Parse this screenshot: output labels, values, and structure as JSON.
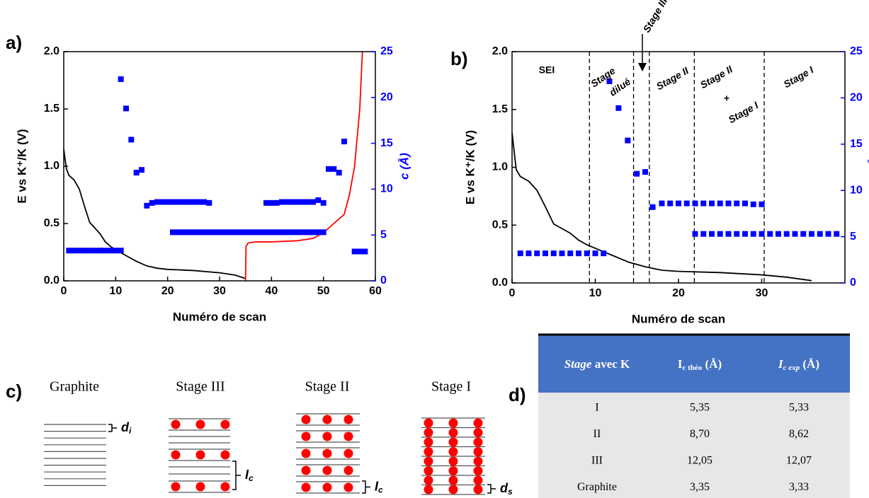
{
  "chart_data": [
    {
      "type": "line",
      "panel_label": "a)",
      "xlabel": "Numéro de scan",
      "ylabel": "E vs K⁺/K (V)",
      "y2label": "c (Å)",
      "xlim": [
        0,
        60
      ],
      "xticks": [
        0,
        10,
        20,
        30,
        40,
        50,
        60
      ],
      "ylim": [
        0,
        2
      ],
      "yticks": [
        {
          "value": 0,
          "label": "0.0"
        },
        0.5,
        {
          "value": 1,
          "label": "1.0"
        },
        1.5,
        {
          "value": 2,
          "label": "2.0"
        }
      ],
      "y2lim": [
        0,
        25
      ],
      "y2ticks": [
        0,
        5,
        10,
        15,
        20,
        25
      ],
      "y2color": "#0000ff",
      "series": [
        {
          "type": "line",
          "color": "#000000",
          "x": [
            0,
            0.5,
            1,
            2,
            3,
            4,
            5,
            6,
            7,
            8,
            9,
            10,
            12,
            14,
            16,
            18,
            20,
            25,
            30,
            33,
            35
          ],
          "values": [
            1.15,
            0.98,
            0.92,
            0.88,
            0.8,
            0.65,
            0.51,
            0.46,
            0.41,
            0.34,
            0.3,
            0.27,
            0.22,
            0.17,
            0.13,
            0.11,
            0.1,
            0.09,
            0.07,
            0.05,
            0.02
          ]
        },
        {
          "type": "line",
          "color": "#ff0000",
          "x": [
            35,
            35.1,
            35.5,
            37,
            40,
            45,
            48,
            50,
            52,
            54,
            55,
            56,
            57,
            57.5
          ],
          "values": [
            0,
            0.3,
            0.33,
            0.34,
            0.34,
            0.35,
            0.37,
            0.42,
            0.5,
            0.58,
            0.75,
            1.0,
            1.5,
            2.0
          ]
        },
        {
          "type": "scatter",
          "color": "#0000ff",
          "axis": "y2",
          "x": [
            1,
            2,
            3,
            4,
            5,
            6,
            7,
            8,
            9,
            10,
            11,
            11,
            12,
            13,
            14,
            15,
            16,
            17,
            18,
            19,
            20,
            21,
            22,
            23,
            24,
            25,
            26,
            27,
            28,
            21,
            22,
            23,
            24,
            25,
            26,
            27,
            28,
            29,
            30,
            31,
            32,
            33,
            34,
            35,
            36,
            37,
            38,
            39,
            40,
            41,
            42,
            43,
            44,
            45,
            46,
            47,
            48,
            49,
            50,
            39,
            40,
            41,
            42,
            43,
            44,
            45,
            46,
            47,
            48,
            49,
            50,
            51,
            52,
            53,
            54,
            56,
            57,
            58
          ],
          "values": [
            3.3,
            3.3,
            3.3,
            3.3,
            3.3,
            3.3,
            3.3,
            3.3,
            3.3,
            3.3,
            3.3,
            22,
            18.8,
            15.4,
            11.8,
            12.1,
            8.2,
            8.5,
            8.6,
            8.6,
            8.6,
            8.6,
            8.6,
            8.6,
            8.6,
            8.6,
            8.6,
            8.6,
            8.5,
            5.3,
            5.3,
            5.3,
            5.3,
            5.3,
            5.3,
            5.3,
            5.3,
            5.3,
            5.3,
            5.3,
            5.3,
            5.3,
            5.3,
            5.3,
            5.3,
            5.3,
            5.3,
            5.3,
            5.3,
            5.3,
            5.3,
            5.3,
            5.3,
            5.3,
            5.3,
            5.3,
            5.3,
            5.3,
            5.3,
            8.5,
            8.5,
            8.5,
            8.6,
            8.6,
            8.6,
            8.6,
            8.6,
            8.6,
            8.6,
            8.8,
            8.5,
            12.2,
            12.2,
            11.8,
            15.2,
            3.2,
            3.2,
            3.2
          ]
        }
      ]
    },
    {
      "type": "line",
      "panel_label": "b)",
      "xlabel": "Numéro de scan",
      "ylabel": "E vs K⁺/K (V)",
      "y2label": "c (Å)",
      "xlim": [
        0,
        40
      ],
      "xticks": [
        0,
        10,
        20,
        30
      ],
      "ylim": [
        0,
        2
      ],
      "yticks": [
        {
          "value": 0,
          "label": "0.0"
        },
        0.5,
        {
          "value": 1,
          "label": "1.0"
        },
        1.5,
        {
          "value": 2,
          "label": "2.0"
        }
      ],
      "y2lim": [
        0,
        25
      ],
      "y2ticks": [
        0,
        5,
        10,
        15,
        20,
        25
      ],
      "y2color": "#0000ff",
      "dividers": [
        9.3,
        14.6,
        16.5,
        21.9,
        30.3
      ],
      "annotations": [
        "SEI",
        "Stage",
        "dilué",
        "Stage III",
        "Stage II",
        "Stage II",
        "+",
        "Stage I",
        "Stage I"
      ],
      "series": [
        {
          "type": "line",
          "color": "#000000",
          "x": [
            0,
            0.5,
            1,
            2,
            3,
            4,
            5,
            6,
            7,
            8,
            9,
            10,
            12,
            14,
            16,
            18,
            20,
            25,
            30,
            33,
            36
          ],
          "values": [
            1.3,
            0.98,
            0.92,
            0.88,
            0.8,
            0.66,
            0.51,
            0.47,
            0.43,
            0.37,
            0.33,
            0.3,
            0.24,
            0.18,
            0.14,
            0.11,
            0.1,
            0.09,
            0.07,
            0.05,
            0.02
          ]
        },
        {
          "type": "scatter",
          "color": "#0000ff",
          "axis": "y2",
          "x": [
            1,
            2,
            3,
            4,
            5,
            6,
            7,
            8,
            9,
            10,
            11,
            11.7,
            12.8,
            13.9,
            15,
            16,
            16.9,
            18,
            19,
            20,
            21,
            22,
            23,
            24,
            25,
            26,
            27,
            28,
            29,
            30,
            22,
            23,
            24,
            25,
            26,
            27,
            28,
            29,
            30,
            31,
            32,
            33,
            34,
            35,
            36,
            37,
            38,
            39
          ],
          "values": [
            3.2,
            3.2,
            3.2,
            3.2,
            3.2,
            3.2,
            3.2,
            3.2,
            3.2,
            3.2,
            3.2,
            21.8,
            18.9,
            15.4,
            11.8,
            12,
            8.2,
            8.6,
            8.6,
            8.6,
            8.6,
            8.6,
            8.6,
            8.6,
            8.6,
            8.6,
            8.6,
            8.6,
            8.5,
            8.5,
            5.3,
            5.3,
            5.3,
            5.3,
            5.3,
            5.3,
            5.3,
            5.3,
            5.3,
            5.3,
            5.3,
            5.3,
            5.3,
            5.3,
            5.3,
            5.3,
            5.3,
            5.3
          ]
        }
      ]
    }
  ],
  "diagram": {
    "panel_label": "c)",
    "columns": [
      "Graphite",
      "Stage III",
      "Stage II",
      "Stage I"
    ],
    "symbols": [
      {
        "main": "d",
        "sub": "i"
      },
      {
        "main": "I",
        "sub": "c"
      },
      {
        "main": "I",
        "sub": "c"
      },
      {
        "main": "d",
        "sub": "s"
      }
    ]
  },
  "table": {
    "panel_label": "d)",
    "header": [
      {
        "em": "Stage",
        "text": " avec K"
      },
      {
        "main": "I",
        "sub": "c théo",
        "unit": " (Å)"
      },
      {
        "main": "I",
        "sub": "c exp",
        "unit": " (Å)"
      }
    ],
    "rows": [
      [
        "I",
        "5,35",
        "5,33"
      ],
      [
        "II",
        "8,70",
        "8,62"
      ],
      [
        "III",
        "12,05",
        "12,07"
      ],
      [
        "Graphite",
        "3,35",
        "3,33"
      ]
    ]
  }
}
